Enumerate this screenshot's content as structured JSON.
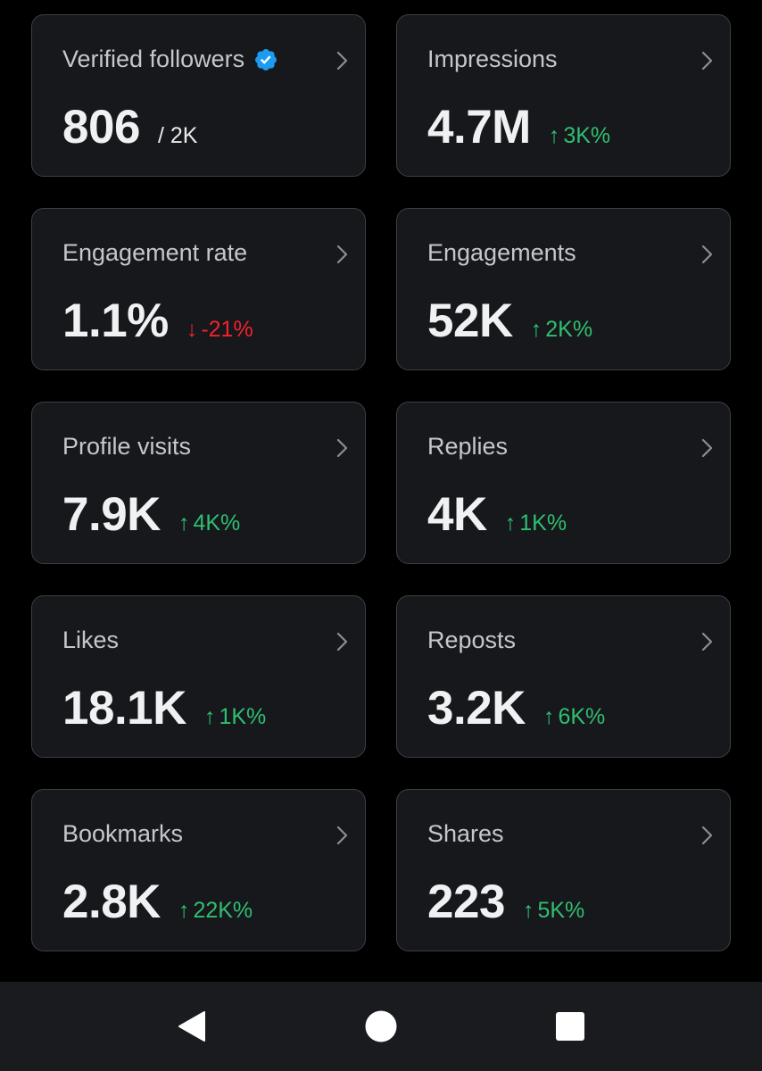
{
  "cards": [
    {
      "title": "Verified followers",
      "value": "806",
      "sub": "/ 2K",
      "verified": true
    },
    {
      "title": "Impressions",
      "value": "4.7M",
      "delta_arrow": "↑",
      "delta": "3K%",
      "direction": "up"
    },
    {
      "title": "Engagement rate",
      "value": "1.1%",
      "delta_arrow": "↓",
      "delta": "-21%",
      "direction": "down"
    },
    {
      "title": "Engagements",
      "value": "52K",
      "delta_arrow": "↑",
      "delta": "2K%",
      "direction": "up"
    },
    {
      "title": "Profile visits",
      "value": "7.9K",
      "delta_arrow": "↑",
      "delta": "4K%",
      "direction": "up"
    },
    {
      "title": "Replies",
      "value": "4K",
      "delta_arrow": "↑",
      "delta": "1K%",
      "direction": "up"
    },
    {
      "title": "Likes",
      "value": "18.1K",
      "delta_arrow": "↑",
      "delta": "1K%",
      "direction": "up"
    },
    {
      "title": "Reposts",
      "value": "3.2K",
      "delta_arrow": "↑",
      "delta": "6K%",
      "direction": "up"
    },
    {
      "title": "Bookmarks",
      "value": "2.8K",
      "delta_arrow": "↑",
      "delta": "22K%",
      "direction": "up"
    },
    {
      "title": "Shares",
      "value": "223",
      "delta_arrow": "↑",
      "delta": "5K%",
      "direction": "up"
    }
  ],
  "colors": {
    "up": "#2fbf71",
    "down": "#f4212e",
    "verified": "#1d9bf0"
  },
  "icons": {
    "card_chevron": "chevron-right-icon",
    "verified": "verified-badge-icon",
    "nav_back": "back-triangle-icon",
    "nav_home": "home-circle-icon",
    "nav_recents": "recents-square-icon"
  }
}
